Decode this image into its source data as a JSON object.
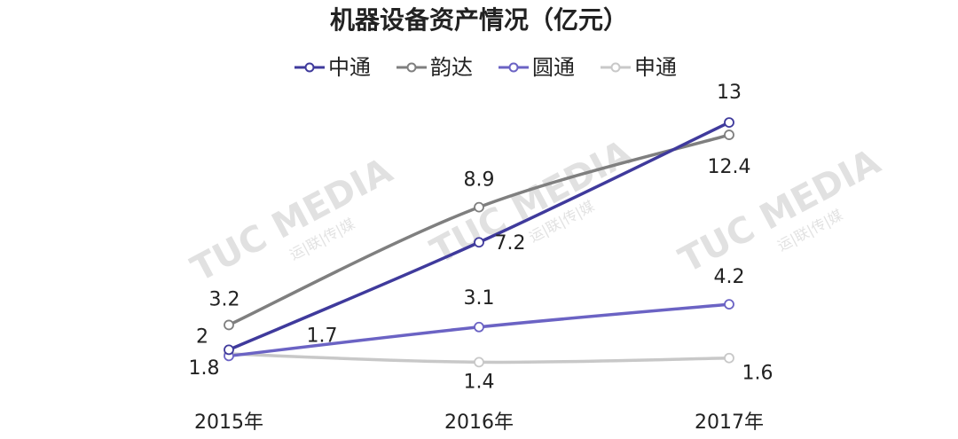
{
  "chart_data": {
    "type": "line",
    "title": "机器设备资产情况（亿元）",
    "categories": [
      "2015年",
      "2016年",
      "2017年"
    ],
    "series": [
      {
        "name": "中通",
        "color": "#3f3a9c",
        "values": [
          2,
          7.2,
          13
        ]
      },
      {
        "name": "韵达",
        "color": "#7f7f7f",
        "values": [
          3.2,
          8.9,
          12.4
        ]
      },
      {
        "name": "圆通",
        "color": "#6b63c4",
        "values": [
          1.7,
          3.1,
          4.2
        ]
      },
      {
        "name": "申通",
        "color": "#c8c8c8",
        "values": [
          1.8,
          1.4,
          1.6
        ]
      }
    ],
    "legend": "top",
    "watermark": "TUC MEDIA",
    "watermark_sub": "运|联|传|媒"
  }
}
